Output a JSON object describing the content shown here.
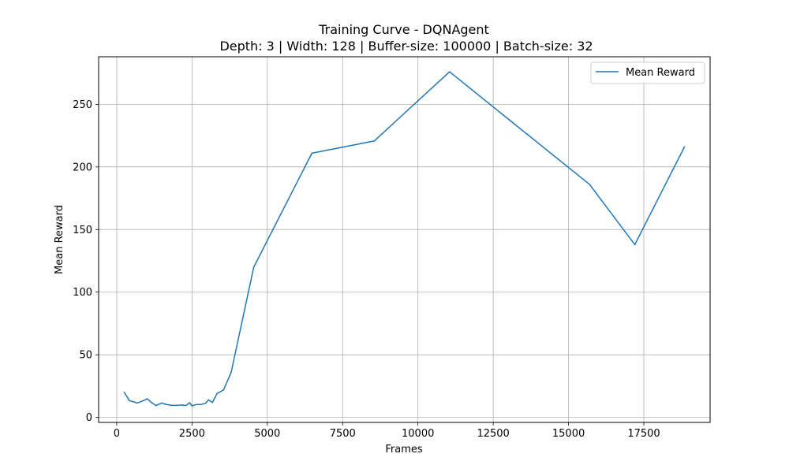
{
  "chart_data": {
    "type": "line",
    "title": "Training Curve - DQNAgent",
    "subtitle": "Depth: 3 | Width: 128 | Buffer-size: 100000 | Batch-size: 32",
    "xlabel": "Frames",
    "ylabel": "Mean Reward",
    "xlim": [
      -600,
      19700
    ],
    "ylim": [
      -4,
      288
    ],
    "xticks": [
      0,
      2500,
      5000,
      7500,
      10000,
      12500,
      15000,
      17500
    ],
    "yticks": [
      0,
      50,
      100,
      150,
      200,
      250
    ],
    "xtick_labels": [
      "0",
      "2500",
      "5000",
      "7500",
      "10000",
      "12500",
      "15000",
      "17500"
    ],
    "ytick_labels": [
      "0",
      "50",
      "100",
      "150",
      "200",
      "250"
    ],
    "grid": true,
    "legend": "top-right",
    "series": [
      {
        "name": "Mean Reward",
        "color": "#1f77b4",
        "x": [
          250,
          420,
          680,
          900,
          1020,
          1150,
          1300,
          1500,
          1620,
          1800,
          2000,
          2150,
          2300,
          2420,
          2500,
          2650,
          2800,
          2950,
          3050,
          3180,
          3330,
          3550,
          3800,
          4550,
          6480,
          8550,
          11050,
          15700,
          17200,
          18850
        ],
        "y": [
          20,
          13.5,
          11.5,
          13.5,
          14.8,
          12,
          9.5,
          11.5,
          10.5,
          9.7,
          9.6,
          9.9,
          9.5,
          11.8,
          9.3,
          10.3,
          10.3,
          11.3,
          14,
          12,
          19,
          22,
          36,
          120,
          211,
          220.7,
          276,
          186,
          138,
          216
        ]
      }
    ]
  }
}
